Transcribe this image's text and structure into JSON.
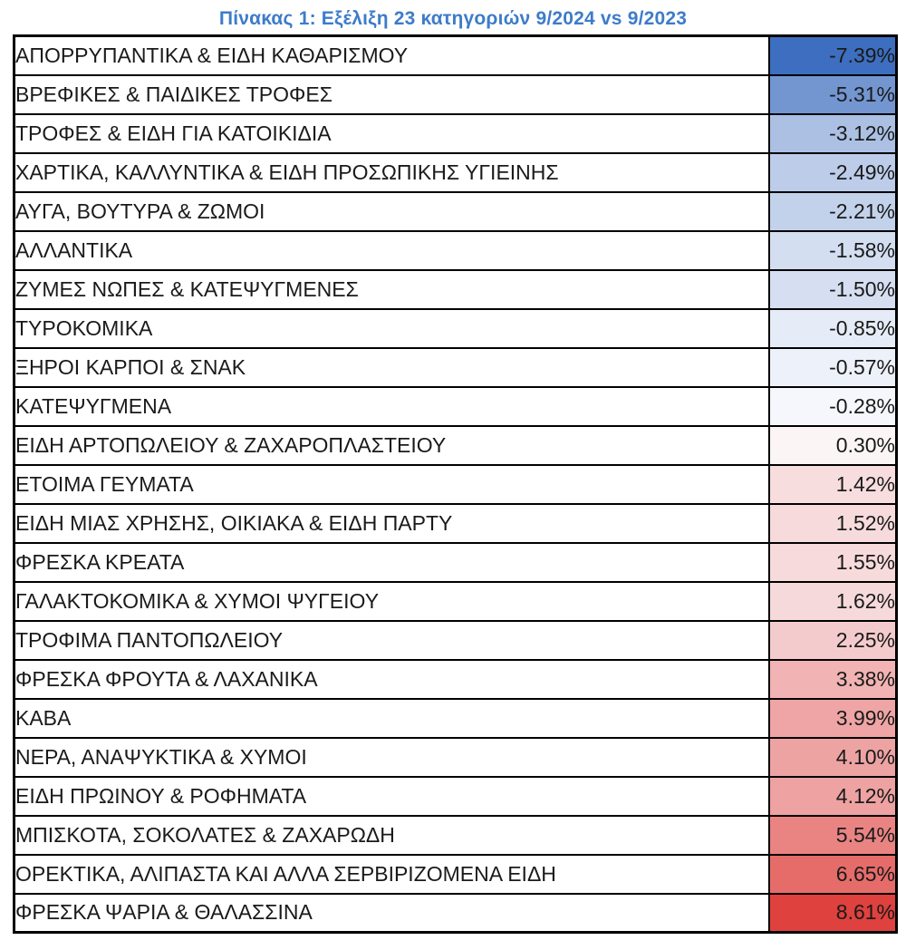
{
  "title": "Πίνακας 1: Εξέλιξη 23 κατηγοριών 9/2024 vs 9/2023",
  "colors": {
    "title_text": "#3d7cc9",
    "table_border": "#000000",
    "scale_negative_end": "#3d6ebf",
    "scale_midpoint": "#fcfcfe",
    "scale_positive_end": "#df413e"
  },
  "chart_data": {
    "type": "table",
    "title": "Πίνακας 1: Εξέλιξη 23 κατηγοριών 9/2024 vs 9/2023",
    "value_range": [
      -7.39,
      8.61
    ],
    "color_scale": "blue-white-red (diverging at 0)",
    "rows": [
      {
        "label": "ΑΠΟΡΡΥΠΑΝΤΙΚΑ & ΕΙΔΗ ΚΑΘΑΡΙΣΜΟΥ",
        "value": "-7.39%",
        "numeric": -7.39,
        "color": "#3d6ebf"
      },
      {
        "label": "ΒΡΕΦΙΚΕΣ & ΠΑΙΔΙΚΕΣ ΤΡΟΦΕΣ",
        "value": "-5.31%",
        "numeric": -5.31,
        "color": "#7396d1"
      },
      {
        "label": "ΤΡΟΦΕΣ & ΕΙΔΗ ΓΙΑ ΚΑΤΟΙΚΙΔΙΑ",
        "value": "-3.12%",
        "numeric": -3.12,
        "color": "#abc0e3"
      },
      {
        "label": "ΧΑΡΤΙΚΑ, ΚΑΛΛΥΝΤΙΚΑ & ΕΙΔΗ ΠΡΟΣΩΠΙΚΗΣ ΥΓΙΕΙΝΗΣ",
        "value": "-2.49%",
        "numeric": -2.49,
        "color": "#bccce9"
      },
      {
        "label": "ΑΥΓΑ, ΒΟΥΤΥΡΑ & ΖΩΜΟΙ",
        "value": "-2.21%",
        "numeric": -2.21,
        "color": "#c3d2eb"
      },
      {
        "label": "ΑΛΛΑΝΤΙΚΑ",
        "value": "-1.58%",
        "numeric": -1.58,
        "color": "#d3def1"
      },
      {
        "label": "ΖΥΜΕΣ ΝΩΠΕΣ & ΚΑΤΕΨΥΓΜΕΝΕΣ",
        "value": "-1.50%",
        "numeric": -1.5,
        "color": "#d5dff1"
      },
      {
        "label": "ΤΥΡΟΚΟΜΙΚΑ",
        "value": "-0.85%",
        "numeric": -0.85,
        "color": "#e6ecf7"
      },
      {
        "label": "ΞΗΡΟΙ ΚΑΡΠΟΙ & ΣΝΑΚ",
        "value": "-0.57%",
        "numeric": -0.57,
        "color": "#edf1f9"
      },
      {
        "label": "ΚΑΤΕΨΥΓΜΕΝΑ",
        "value": "-0.28%",
        "numeric": -0.28,
        "color": "#f5f7fc"
      },
      {
        "label": "ΕΙΔΗ ΑΡΤΟΠΩΛΕΙΟΥ & ΖΑΧΑΡΟΠΛΑΣΤΕΙΟΥ",
        "value": "0.30%",
        "numeric": 0.3,
        "color": "#fbf5f6"
      },
      {
        "label": "ΕΤΟΙΜΑ ΓΕΥΜΑΤΑ",
        "value": "1.42%",
        "numeric": 1.42,
        "color": "#f7ddde"
      },
      {
        "label": "ΕΙΔΗ ΜΙΑΣ ΧΡΗΣΗΣ, ΟΙΚΙΑΚΑ & ΕΙΔΗ ΠΑΡΤΥ",
        "value": "1.52%",
        "numeric": 1.52,
        "color": "#f7dbdc"
      },
      {
        "label": "ΦΡΕΣΚΑ ΚΡΕΑΤΑ",
        "value": "1.55%",
        "numeric": 1.55,
        "color": "#f7dadb"
      },
      {
        "label": "ΓΑΛΑΚΤΟΚΟΜΙΚΑ & ΧΥΜΟΙ ΨΥΓΕΙΟΥ",
        "value": "1.62%",
        "numeric": 1.62,
        "color": "#f6d9da"
      },
      {
        "label": "ΤΡΟΦΙΜΑ ΠΑΝΤΟΠΩΛΕΙΟΥ",
        "value": "2.25%",
        "numeric": 2.25,
        "color": "#f4cbcc"
      },
      {
        "label": "ΦΡΕΣΚΑ ΦΡΟΥΤΑ & ΛΑΧΑΝΙΚΑ",
        "value": "3.38%",
        "numeric": 3.38,
        "color": "#f1b3b3"
      },
      {
        "label": "ΚΑΒΑ",
        "value": "3.99%",
        "numeric": 3.99,
        "color": "#efa5a5"
      },
      {
        "label": "ΝΕΡΑ, ΑΝΑΨΥΚΤΙΚΑ & ΧΥΜΟΙ",
        "value": "4.10%",
        "numeric": 4.1,
        "color": "#eea3a3"
      },
      {
        "label": "ΕΙΔΗ ΠΡΩΙΝΟΥ & ΡΟΦΗΜΑΤΑ",
        "value": "4.12%",
        "numeric": 4.12,
        "color": "#eea2a2"
      },
      {
        "label": "ΜΠΙΣΚΟΤΑ, ΣΟΚΟΛΑΤΕΣ & ΖΑΧΑΡΩΔΗ",
        "value": "5.54%",
        "numeric": 5.54,
        "color": "#e98483"
      },
      {
        "label": "ΟΡΕΚΤΙΚΑ, ΑΛΙΠΑΣΤΑ ΚΑΙ ΑΛΛΑ ΣΕΡΒΙΡΙΖΟΜΕΝΑ ΕΙΔΗ",
        "value": "6.65%",
        "numeric": 6.65,
        "color": "#e66c6a"
      },
      {
        "label": "ΦΡΕΣΚΑ ΨΑΡΙΑ & ΘΑΛΑΣΣΙΝΑ",
        "value": "8.61%",
        "numeric": 8.61,
        "color": "#df413e"
      }
    ]
  }
}
